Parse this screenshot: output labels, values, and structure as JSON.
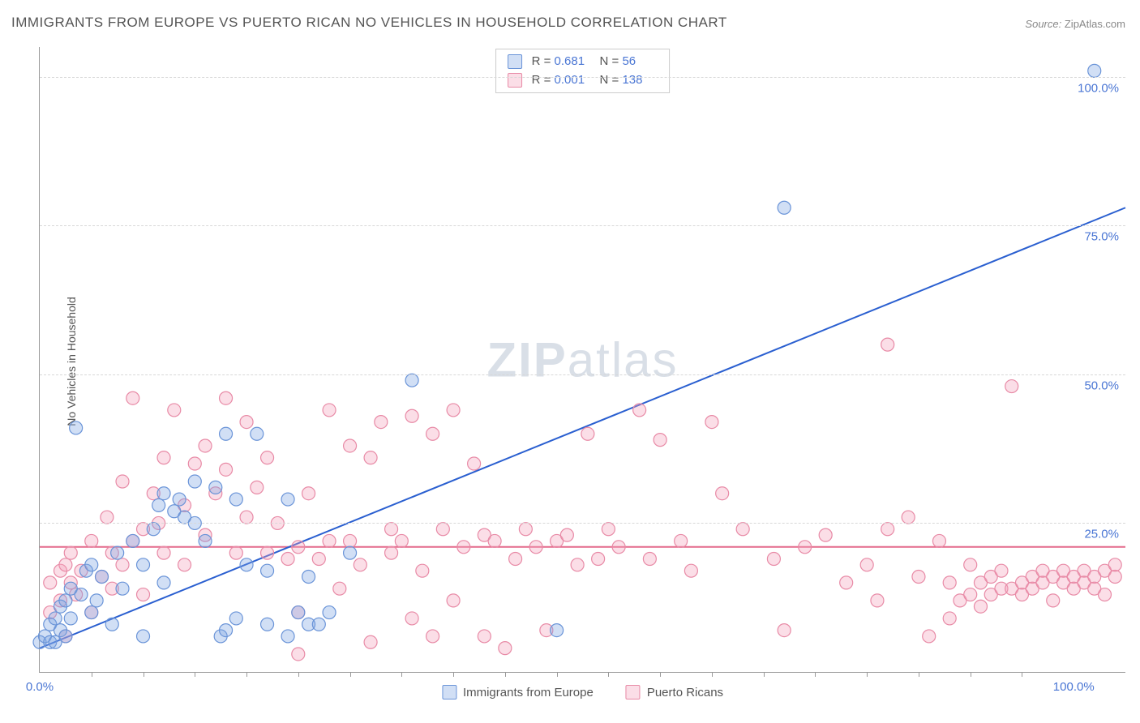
{
  "title": "IMMIGRANTS FROM EUROPE VS PUERTO RICAN NO VEHICLES IN HOUSEHOLD CORRELATION CHART",
  "source_label": "Source:",
  "source_value": "ZipAtlas.com",
  "ylabel": "No Vehicles in Household",
  "watermark_bold": "ZIP",
  "watermark_light": "atlas",
  "chart": {
    "type": "scatter",
    "background_color": "#ffffff",
    "grid_color": "#d8d8d8",
    "axis_color": "#999999",
    "text_color": "#555555",
    "link_color": "#4a76d4",
    "xlim": [
      0,
      105
    ],
    "ylim": [
      0,
      105
    ],
    "yticks": [
      25,
      50,
      75,
      100
    ],
    "ytick_labels": [
      "25.0%",
      "50.0%",
      "75.0%",
      "100.0%"
    ],
    "xticks_major": [
      0,
      100
    ],
    "xtick_labels": [
      "0.0%",
      "100.0%"
    ],
    "xticks_minor": [
      5,
      10,
      15,
      20,
      25,
      30,
      35,
      40,
      45,
      50,
      55,
      60,
      65,
      70,
      75,
      80,
      85,
      90,
      95
    ],
    "marker_radius": 8,
    "marker_stroke_width": 1.2,
    "line_width": 2
  },
  "series": [
    {
      "name": "Immigrants from Europe",
      "fill": "rgba(122,162,226,0.35)",
      "stroke": "#6a94d8",
      "R": "0.681",
      "N": "56",
      "trend": {
        "x1": 0,
        "y1": 4,
        "x2": 105,
        "y2": 78,
        "color": "#2a5fd0"
      },
      "points": [
        [
          0,
          5
        ],
        [
          0.5,
          6
        ],
        [
          1,
          5
        ],
        [
          1,
          8
        ],
        [
          1.5,
          5
        ],
        [
          1.5,
          9
        ],
        [
          2,
          11
        ],
        [
          2,
          7
        ],
        [
          2.5,
          6
        ],
        [
          2.5,
          12
        ],
        [
          3,
          9
        ],
        [
          3,
          14
        ],
        [
          3.5,
          41
        ],
        [
          4,
          13
        ],
        [
          4.5,
          17
        ],
        [
          5,
          10
        ],
        [
          5,
          18
        ],
        [
          5.5,
          12
        ],
        [
          6,
          16
        ],
        [
          7,
          8
        ],
        [
          7.5,
          20
        ],
        [
          8,
          14
        ],
        [
          9,
          22
        ],
        [
          10,
          6
        ],
        [
          10,
          18
        ],
        [
          11,
          24
        ],
        [
          11.5,
          28
        ],
        [
          12,
          30
        ],
        [
          12,
          15
        ],
        [
          13,
          27
        ],
        [
          13.5,
          29
        ],
        [
          14,
          26
        ],
        [
          15,
          25
        ],
        [
          15,
          32
        ],
        [
          16,
          22
        ],
        [
          17,
          31
        ],
        [
          17.5,
          6
        ],
        [
          18,
          40
        ],
        [
          18,
          7
        ],
        [
          19,
          9
        ],
        [
          19,
          29
        ],
        [
          20,
          18
        ],
        [
          21,
          40
        ],
        [
          22,
          17
        ],
        [
          22,
          8
        ],
        [
          24,
          6
        ],
        [
          24,
          29
        ],
        [
          25,
          10
        ],
        [
          26,
          8
        ],
        [
          26,
          16
        ],
        [
          27,
          8
        ],
        [
          28,
          10
        ],
        [
          30,
          20
        ],
        [
          36,
          49
        ],
        [
          50,
          7
        ],
        [
          72,
          78
        ],
        [
          102,
          101
        ]
      ]
    },
    {
      "name": "Puerto Ricans",
      "fill": "rgba(244,160,185,0.35)",
      "stroke": "#e88aa6",
      "R": "0.001",
      "N": "138",
      "trend": {
        "x1": 0,
        "y1": 21,
        "x2": 105,
        "y2": 21,
        "color": "#e46a8c"
      },
      "points": [
        [
          1,
          15
        ],
        [
          1,
          10
        ],
        [
          2,
          17
        ],
        [
          2,
          12
        ],
        [
          2.5,
          6
        ],
        [
          2.5,
          18
        ],
        [
          3,
          15
        ],
        [
          3,
          20
        ],
        [
          3.5,
          13
        ],
        [
          4,
          17
        ],
        [
          5,
          22
        ],
        [
          5,
          10
        ],
        [
          6,
          16
        ],
        [
          6.5,
          26
        ],
        [
          7,
          14
        ],
        [
          7,
          20
        ],
        [
          8,
          32
        ],
        [
          8,
          18
        ],
        [
          9,
          46
        ],
        [
          9,
          22
        ],
        [
          10,
          24
        ],
        [
          10,
          13
        ],
        [
          11,
          30
        ],
        [
          11.5,
          25
        ],
        [
          12,
          36
        ],
        [
          12,
          20
        ],
        [
          13,
          44
        ],
        [
          14,
          28
        ],
        [
          14,
          18
        ],
        [
          15,
          35
        ],
        [
          16,
          23
        ],
        [
          16,
          38
        ],
        [
          17,
          30
        ],
        [
          18,
          34
        ],
        [
          18,
          46
        ],
        [
          19,
          20
        ],
        [
          20,
          42
        ],
        [
          20,
          26
        ],
        [
          21,
          31
        ],
        [
          22,
          36
        ],
        [
          22,
          20
        ],
        [
          23,
          25
        ],
        [
          24,
          19
        ],
        [
          25,
          21
        ],
        [
          25,
          10
        ],
        [
          25,
          3
        ],
        [
          26,
          30
        ],
        [
          27,
          19
        ],
        [
          28,
          44
        ],
        [
          28,
          22
        ],
        [
          29,
          14
        ],
        [
          30,
          38
        ],
        [
          30,
          22
        ],
        [
          31,
          18
        ],
        [
          32,
          36
        ],
        [
          32,
          5
        ],
        [
          33,
          42
        ],
        [
          34,
          20
        ],
        [
          34,
          24
        ],
        [
          35,
          22
        ],
        [
          36,
          43
        ],
        [
          36,
          9
        ],
        [
          37,
          17
        ],
        [
          38,
          40
        ],
        [
          38,
          6
        ],
        [
          39,
          24
        ],
        [
          40,
          44
        ],
        [
          40,
          12
        ],
        [
          41,
          21
        ],
        [
          42,
          35
        ],
        [
          43,
          6
        ],
        [
          43,
          23
        ],
        [
          44,
          22
        ],
        [
          45,
          4
        ],
        [
          46,
          19
        ],
        [
          47,
          24
        ],
        [
          48,
          21
        ],
        [
          49,
          7
        ],
        [
          50,
          22
        ],
        [
          51,
          23
        ],
        [
          52,
          18
        ],
        [
          53,
          40
        ],
        [
          54,
          19
        ],
        [
          55,
          24
        ],
        [
          56,
          21
        ],
        [
          58,
          44
        ],
        [
          59,
          19
        ],
        [
          60,
          39
        ],
        [
          62,
          22
        ],
        [
          63,
          17
        ],
        [
          65,
          42
        ],
        [
          66,
          30
        ],
        [
          68,
          24
        ],
        [
          71,
          19
        ],
        [
          72,
          7
        ],
        [
          74,
          21
        ],
        [
          76,
          23
        ],
        [
          78,
          15
        ],
        [
          80,
          18
        ],
        [
          81,
          12
        ],
        [
          82,
          55
        ],
        [
          82,
          24
        ],
        [
          84,
          26
        ],
        [
          85,
          16
        ],
        [
          86,
          6
        ],
        [
          87,
          22
        ],
        [
          88,
          9
        ],
        [
          88,
          15
        ],
        [
          89,
          12
        ],
        [
          90,
          13
        ],
        [
          90,
          18
        ],
        [
          91,
          11
        ],
        [
          91,
          15
        ],
        [
          92,
          16
        ],
        [
          92,
          13
        ],
        [
          93,
          14
        ],
        [
          93,
          17
        ],
        [
          94,
          14
        ],
        [
          94,
          48
        ],
        [
          95,
          15
        ],
        [
          95,
          13
        ],
        [
          96,
          16
        ],
        [
          96,
          14
        ],
        [
          97,
          15
        ],
        [
          97,
          17
        ],
        [
          98,
          16
        ],
        [
          98,
          12
        ],
        [
          99,
          15
        ],
        [
          99,
          17
        ],
        [
          100,
          16
        ],
        [
          100,
          14
        ],
        [
          101,
          17
        ],
        [
          101,
          15
        ],
        [
          102,
          16
        ],
        [
          102,
          14
        ],
        [
          103,
          17
        ],
        [
          103,
          13
        ],
        [
          104,
          16
        ],
        [
          104,
          18
        ]
      ]
    }
  ],
  "legend_bottom": [
    {
      "label": "Immigrants from Europe",
      "fill": "rgba(122,162,226,0.35)",
      "stroke": "#6a94d8"
    },
    {
      "label": "Puerto Ricans",
      "fill": "rgba(244,160,185,0.35)",
      "stroke": "#e88aa6"
    }
  ]
}
